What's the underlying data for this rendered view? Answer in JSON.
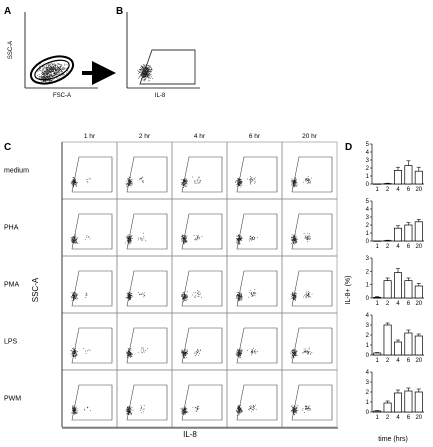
{
  "panels": {
    "a": {
      "label": "A",
      "xlabel": "FSC-A",
      "ylabel": "SSC-A"
    },
    "b": {
      "label": "B",
      "xlabel": "IL-8"
    },
    "c": {
      "label": "C",
      "columns": [
        "1 hr",
        "2 hr",
        "4 hr",
        "6 hr",
        "20 hr"
      ],
      "rows": [
        "medium",
        "PHA",
        "PMA",
        "LPS",
        "PWM"
      ],
      "ylabel": "SSC-A",
      "xlabel": "IL-8"
    },
    "d": {
      "label": "D",
      "ylabel": "IL-8+ (%)",
      "xlabel": "time (hrs)"
    }
  },
  "chart_data": [
    {
      "type": "bar",
      "title": "medium",
      "categories": [
        "1",
        "2",
        "4",
        "6",
        "20"
      ],
      "values": [
        0,
        0.05,
        1.7,
        2.3,
        1.6
      ],
      "errors": [
        0,
        0.05,
        0.4,
        0.6,
        0.5
      ],
      "yticks": [
        0,
        1,
        2,
        3,
        4,
        5
      ],
      "ylim": [
        0,
        5
      ]
    },
    {
      "type": "bar",
      "title": "PHA",
      "categories": [
        "1",
        "2",
        "4",
        "6",
        "20"
      ],
      "values": [
        0,
        0.05,
        1.6,
        2.0,
        2.4
      ],
      "errors": [
        0,
        0.05,
        0.3,
        0.3,
        0.3
      ],
      "yticks": [
        0,
        1,
        2,
        3,
        4,
        5
      ],
      "ylim": [
        0,
        5
      ]
    },
    {
      "type": "bar",
      "title": "PMA",
      "categories": [
        "1",
        "2",
        "4",
        "6",
        "20"
      ],
      "values": [
        0.05,
        1.3,
        1.9,
        1.3,
        0.9
      ],
      "errors": [
        0.05,
        0.2,
        0.3,
        0.2,
        0.2
      ],
      "yticks": [
        0,
        1,
        2,
        3
      ],
      "ylim": [
        0,
        3
      ]
    },
    {
      "type": "bar",
      "title": "LPS",
      "categories": [
        "1",
        "2",
        "4",
        "6",
        "20"
      ],
      "values": [
        0.2,
        3.0,
        1.3,
        2.2,
        1.9
      ],
      "errors": [
        0.05,
        0.2,
        0.2,
        0.3,
        0.2
      ],
      "yticks": [
        0,
        1,
        2,
        3,
        4
      ],
      "ylim": [
        0,
        4
      ]
    },
    {
      "type": "bar",
      "title": "PWM",
      "categories": [
        "1",
        "2",
        "4",
        "6",
        "20"
      ],
      "values": [
        0.1,
        0.9,
        1.9,
        2.1,
        2.0
      ],
      "errors": [
        0.05,
        0.2,
        0.3,
        0.3,
        0.3
      ],
      "yticks": [
        0,
        1,
        2,
        3,
        4
      ],
      "ylim": [
        0,
        4
      ]
    }
  ]
}
